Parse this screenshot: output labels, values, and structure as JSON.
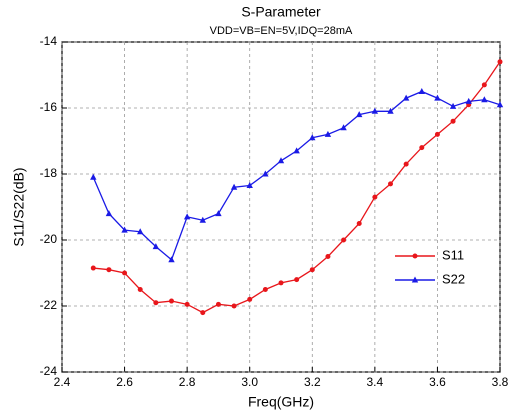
{
  "chart_data": {
    "type": "line",
    "title": "S-Parameter",
    "subtitle": "VDD=VB=EN=5V,IDQ=28mA",
    "xlabel": "Freq(GHz)",
    "ylabel": "S11/S22(dB)",
    "x": [
      2.5,
      2.55,
      2.6,
      2.65,
      2.7,
      2.75,
      2.8,
      2.85,
      2.9,
      2.95,
      3.0,
      3.05,
      3.1,
      3.15,
      3.2,
      3.25,
      3.3,
      3.35,
      3.4,
      3.45,
      3.5,
      3.55,
      3.6,
      3.65,
      3.7,
      3.75,
      3.8
    ],
    "series": [
      {
        "name": "S11",
        "color": "#e8161b",
        "marker": "circle",
        "values": [
          -20.85,
          -20.9,
          -21.0,
          -21.5,
          -21.9,
          -21.85,
          -21.95,
          -22.2,
          -21.95,
          -22.0,
          -21.8,
          -21.5,
          -21.3,
          -21.2,
          -20.9,
          -20.5,
          -20.0,
          -19.5,
          -18.7,
          -18.3,
          -17.7,
          -17.2,
          -16.8,
          -16.4,
          -15.9,
          -15.3,
          -14.6
        ]
      },
      {
        "name": "S22",
        "color": "#1a1ae6",
        "marker": "triangle",
        "values": [
          -18.1,
          -19.2,
          -19.7,
          -19.75,
          -20.2,
          -20.6,
          -19.3,
          -19.4,
          -19.2,
          -18.4,
          -18.35,
          -18.0,
          -17.6,
          -17.3,
          -16.9,
          -16.8,
          -16.6,
          -16.2,
          -16.1,
          -16.1,
          -15.7,
          -15.5,
          -15.7,
          -15.95,
          -15.8,
          -15.75,
          -15.9
        ]
      }
    ],
    "xlim": [
      2.4,
      3.8
    ],
    "xticks": [
      2.4,
      2.6,
      2.8,
      {
        "value": 3,
        "label": "3.0"
      },
      3.2,
      3.4,
      3.6,
      3.8
    ],
    "ylim": [
      -24,
      -14
    ],
    "yticks": [
      -24,
      -22,
      -20,
      -18,
      -16,
      -14
    ],
    "grid": true,
    "legend": "right"
  }
}
